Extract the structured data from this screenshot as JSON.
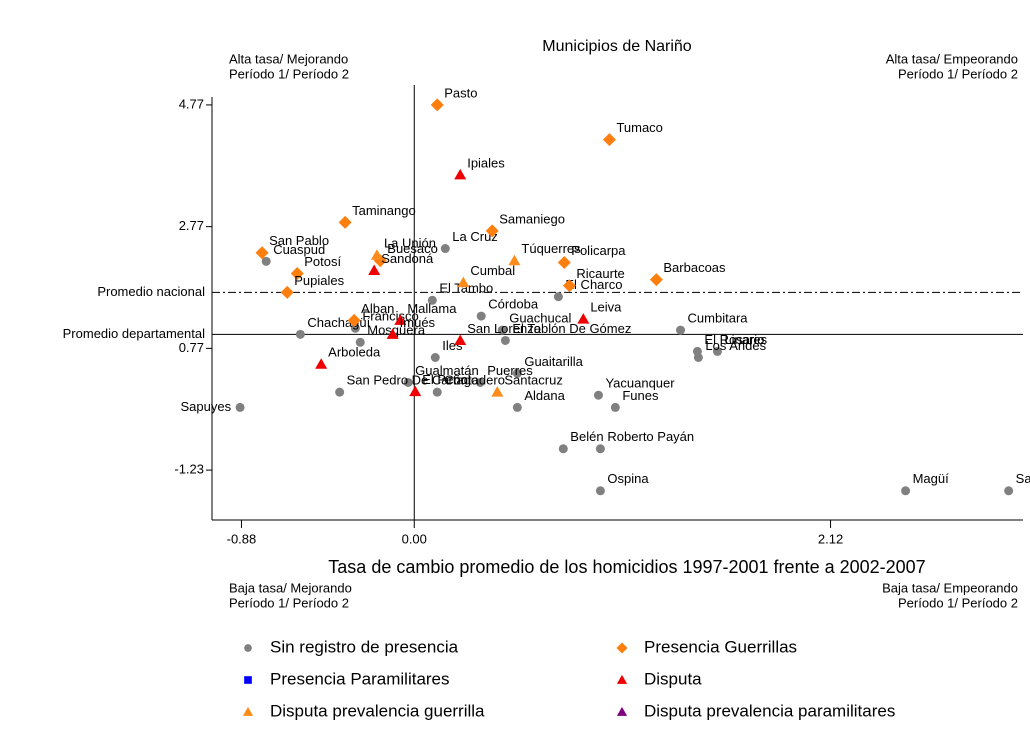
{
  "chart_data": {
    "type": "scatter",
    "title": "Municipios de Nariño",
    "x_label": "Tasa de cambio promedio de los homicidios 1997-2001 frente a 2002-2007",
    "corner_notes": {
      "top_left": [
        "Alta tasa/ Mejorando",
        "Período 1/ Período 2"
      ],
      "top_right": [
        "Alta tasa/ Empeorando",
        "Período 1/ Período 2"
      ],
      "bottom_left": [
        "Baja tasa/ Mejorando",
        "Período 1/ Período 2"
      ],
      "bottom_right": [
        "Baja tasa/ Empeorando",
        "Período 1/ Período 2"
      ]
    },
    "xlim": [
      -1.03,
      3.1
    ],
    "ylim": [
      -2.05,
      4.9
    ],
    "xticks": [
      -0.88,
      {
        "value": 0,
        "label": "0.00"
      },
      2.12
    ],
    "yticks": [
      -1.23,
      0.77,
      2.77,
      4.77
    ],
    "reference_lines": [
      {
        "label": "Promedio nacional",
        "y": 1.69,
        "style": "dashdot"
      },
      {
        "label": "Promedio departamental",
        "y": 1.0,
        "style": "solid"
      }
    ],
    "series": [
      {
        "name": "Sin registro de presencia",
        "color": "#808080",
        "marker": "circle",
        "labels": [
          "La Cruz",
          "Cuaspud",
          "El Charco",
          "El Tambo",
          "Córdoba",
          "Guachucal",
          "Francisco",
          "Chachagüí",
          "Cumbitara",
          "El Rosario",
          "Linares",
          "Los Andes",
          "Mosquera",
          "El Tablón De Gómez",
          "Iles",
          "Guaitarilla",
          "Puerres",
          "Gualmatán",
          "Contadero",
          "San Pedro De Cartago",
          "Sapuyes",
          "Aldana",
          "Funes",
          "Yacuanquer",
          "Roberto Payán",
          "Belén",
          "Ospina",
          "Magüí",
          "Santa Bárbara"
        ],
        "x": [
          0.158,
          -0.754,
          0.734,
          0.092,
          0.341,
          0.448,
          -0.3,
          -0.58,
          1.356,
          1.442,
          1.544,
          1.447,
          -0.275,
          0.464,
          0.107,
          0.525,
          0.336,
          -0.031,
          0.117,
          -0.38,
          -0.887,
          0.525,
          1.024,
          0.938,
          0.948,
          0.759,
          0.948,
          2.502,
          3.027
        ],
        "y": [
          2.41,
          2.2,
          1.62,
          1.56,
          1.3,
          1.07,
          1.1,
          1.0,
          1.07,
          0.72,
          0.72,
          0.62,
          0.87,
          0.9,
          0.62,
          0.36,
          0.21,
          0.21,
          0.05,
          0.05,
          -0.2,
          -0.2,
          -0.2,
          0.0,
          -0.88,
          -0.88,
          -1.57,
          -1.57,
          -1.57
        ]
      },
      {
        "name": "Presencia Guerrillas",
        "color": "#ff7f0e",
        "marker": "diamond",
        "labels": [
          "Pasto",
          "Tumaco",
          "Taminango",
          "Samaniego",
          "San Pablo",
          "Buesaco",
          "Potosí",
          "Pupiales",
          "Policarpa",
          "Ricaurte",
          "Barbacoas",
          "Alban"
        ],
        "x": [
          0.117,
          0.994,
          -0.352,
          0.397,
          -0.775,
          -0.173,
          -0.596,
          -0.647,
          0.764,
          0.79,
          1.233,
          -0.306
        ],
        "y": [
          4.77,
          4.2,
          2.84,
          2.7,
          2.34,
          2.21,
          2.0,
          1.69,
          2.18,
          1.8,
          1.9,
          1.23
        ]
      },
      {
        "name": "Presencia Paramilitares",
        "color": "#0000ff",
        "marker": "square",
        "labels": [],
        "x": [],
        "y": []
      },
      {
        "name": "Disputa",
        "color": "#ee0000",
        "marker": "triangle",
        "labels": [
          "Ipiales",
          "Sandoná",
          "Mallama",
          "Leiva",
          "San Lorenzo",
          "Arboleda",
          "El Peñol",
          "Imués"
        ],
        "x": [
          0.234,
          -0.204,
          -0.071,
          0.861,
          0.234,
          -0.474,
          0.005,
          -0.11
        ],
        "y": [
          3.62,
          2.05,
          1.23,
          1.25,
          0.9,
          0.51,
          0.06,
          1.0
        ]
      },
      {
        "name": "Disputa prevalencia guerrilla",
        "color": "#ff8c1a",
        "marker": "triangle",
        "labels": [
          "Túquerres",
          "Cumbal",
          "Santacruz",
          "La Unión"
        ],
        "x": [
          0.51,
          0.25,
          0.423,
          -0.19
        ],
        "y": [
          2.21,
          1.85,
          0.05,
          2.3
        ]
      },
      {
        "name": "Disputa prevalencia paramilitares",
        "color": "#800080",
        "marker": "triangle",
        "labels": [],
        "x": [],
        "y": []
      }
    ]
  }
}
